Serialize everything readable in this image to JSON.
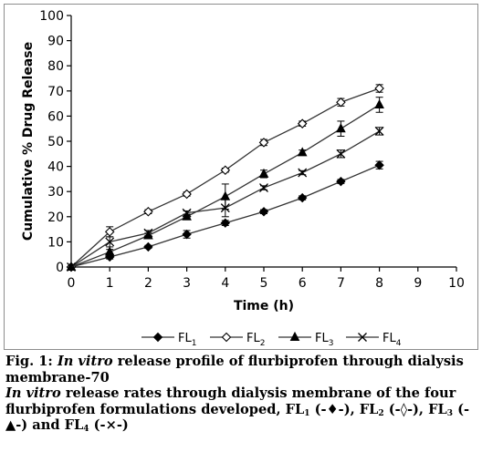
{
  "chart_data": {
    "type": "line",
    "title": "",
    "xlabel": "Time (h)",
    "ylabel": "Cumulative % Drug Release",
    "xlim": [
      0,
      10
    ],
    "ylim": [
      0,
      100
    ],
    "x_ticks": [
      "0",
      "1",
      "2",
      "3",
      "4",
      "5",
      "6",
      "7",
      "8",
      "9",
      "10"
    ],
    "y_ticks": [
      "0",
      "10",
      "20",
      "30",
      "40",
      "50",
      "60",
      "70",
      "80",
      "90",
      "100"
    ],
    "grid": false,
    "legend_position": "bottom",
    "x": [
      0,
      1,
      2,
      3,
      4,
      5,
      6,
      7,
      8
    ],
    "series": [
      {
        "name": "FL1",
        "label_main": "FL",
        "label_sub": "1",
        "marker": "diamond-filled",
        "values": [
          0,
          4,
          8,
          13,
          17.5,
          22,
          27.5,
          34,
          40.5
        ],
        "errors": [
          0,
          0.8,
          0.6,
          1.5,
          1.0,
          0.8,
          0.8,
          0.8,
          1.5
        ]
      },
      {
        "name": "FL2",
        "label_main": "FL",
        "label_sub": "2",
        "marker": "diamond-open",
        "values": [
          0,
          14,
          22,
          29,
          38.5,
          49.5,
          57,
          65.5,
          71
        ],
        "errors": [
          0,
          2.0,
          0.8,
          0.8,
          0.8,
          1.2,
          1.0,
          1.5,
          1.5
        ]
      },
      {
        "name": "FL3",
        "label_main": "FL",
        "label_sub": "3",
        "marker": "triangle-filled",
        "values": [
          0,
          6,
          12.5,
          20,
          28,
          37,
          45.5,
          55,
          64.5
        ],
        "errors": [
          0,
          1.0,
          1.0,
          1.0,
          5.0,
          1.5,
          1.0,
          3.0,
          3.0
        ]
      },
      {
        "name": "FL4",
        "label_main": "FL",
        "label_sub": "4",
        "marker": "x",
        "values": [
          0,
          10,
          13.5,
          21.5,
          23.5,
          31.5,
          37.5,
          45,
          54
        ],
        "errors": [
          0,
          2.0,
          1.0,
          0.8,
          3.5,
          0.8,
          0.8,
          1.5,
          1.5
        ]
      }
    ]
  },
  "caption": {
    "fig_label": "Fig. 1:",
    "title_italic": "In vitro",
    "title_rest": "release profile of flurbiprofen through dialysis membrane-70",
    "desc_italic": "In vitro",
    "desc_rest": "release rates through dialysis membrane of the four flurbiprofen formulations developed,",
    "items": [
      {
        "main": "FL",
        "sub": "1",
        "symbol": "(-♦-),",
        "joiner": ""
      },
      {
        "main": "FL",
        "sub": "2",
        "symbol": "(-◊-),",
        "joiner": ""
      },
      {
        "main": "FL",
        "sub": "3",
        "symbol": "(-▲-)",
        "joiner": ""
      },
      {
        "main": "FL",
        "sub": "4",
        "symbol": "(-×-)",
        "joiner": "and"
      }
    ]
  }
}
